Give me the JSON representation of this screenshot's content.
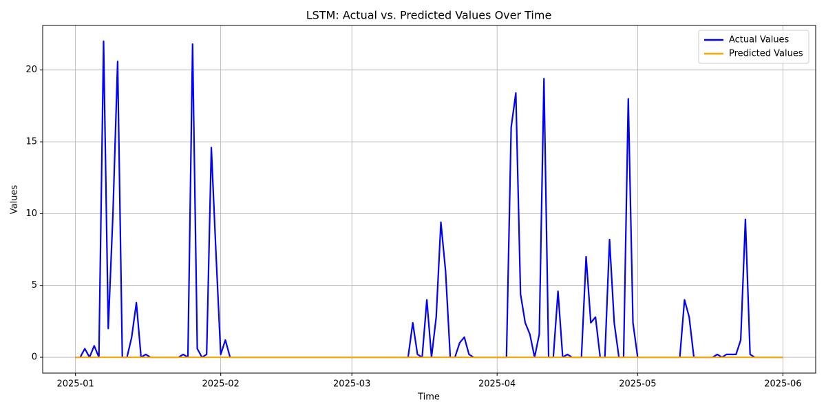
{
  "chart_data": {
    "type": "line",
    "title": "LSTM: Actual vs. Predicted Values Over Time",
    "x_label": "Time",
    "y_label": "Values",
    "x": [
      "2025-01-01",
      "2025-01-02",
      "2025-01-03",
      "2025-01-04",
      "2025-01-05",
      "2025-01-06",
      "2025-01-07",
      "2025-01-08",
      "2025-01-09",
      "2025-01-10",
      "2025-01-11",
      "2025-01-12",
      "2025-01-13",
      "2025-01-14",
      "2025-01-15",
      "2025-01-16",
      "2025-01-17",
      "2025-01-18",
      "2025-01-19",
      "2025-01-20",
      "2025-01-21",
      "2025-01-22",
      "2025-01-23",
      "2025-01-24",
      "2025-01-25",
      "2025-01-26",
      "2025-01-27",
      "2025-01-28",
      "2025-01-29",
      "2025-01-30",
      "2025-01-31",
      "2025-02-01",
      "2025-02-02",
      "2025-02-03",
      "2025-02-04",
      "2025-02-05",
      "2025-02-06",
      "2025-02-07",
      "2025-02-08",
      "2025-02-09",
      "2025-02-10",
      "2025-02-11",
      "2025-02-12",
      "2025-02-13",
      "2025-02-14",
      "2025-02-15",
      "2025-02-16",
      "2025-02-17",
      "2025-02-18",
      "2025-02-19",
      "2025-02-20",
      "2025-02-21",
      "2025-02-22",
      "2025-02-23",
      "2025-02-24",
      "2025-02-25",
      "2025-02-26",
      "2025-02-27",
      "2025-02-28",
      "2025-03-01",
      "2025-03-02",
      "2025-03-03",
      "2025-03-04",
      "2025-03-05",
      "2025-03-06",
      "2025-03-07",
      "2025-03-08",
      "2025-03-09",
      "2025-03-10",
      "2025-03-11",
      "2025-03-12",
      "2025-03-13",
      "2025-03-14",
      "2025-03-15",
      "2025-03-16",
      "2025-03-17",
      "2025-03-18",
      "2025-03-19",
      "2025-03-20",
      "2025-03-21",
      "2025-03-22",
      "2025-03-23",
      "2025-03-24",
      "2025-03-25",
      "2025-03-26",
      "2025-03-27",
      "2025-03-28",
      "2025-03-29",
      "2025-03-30",
      "2025-03-31",
      "2025-04-01",
      "2025-04-02",
      "2025-04-03",
      "2025-04-04",
      "2025-04-05",
      "2025-04-06",
      "2025-04-07",
      "2025-04-08",
      "2025-04-09",
      "2025-04-10",
      "2025-04-11",
      "2025-04-12",
      "2025-04-13",
      "2025-04-14",
      "2025-04-15",
      "2025-04-16",
      "2025-04-17",
      "2025-04-18",
      "2025-04-19",
      "2025-04-20",
      "2025-04-21",
      "2025-04-22",
      "2025-04-23",
      "2025-04-24",
      "2025-04-25",
      "2025-04-26",
      "2025-04-27",
      "2025-04-28",
      "2025-04-29",
      "2025-04-30",
      "2025-05-01",
      "2025-05-02",
      "2025-05-03",
      "2025-05-04",
      "2025-05-05",
      "2025-05-06",
      "2025-05-07",
      "2025-05-08",
      "2025-05-09",
      "2025-05-10",
      "2025-05-11",
      "2025-05-12",
      "2025-05-13",
      "2025-05-14",
      "2025-05-15",
      "2025-05-16",
      "2025-05-17",
      "2025-05-18",
      "2025-05-19",
      "2025-05-20",
      "2025-05-21",
      "2025-05-22",
      "2025-05-23",
      "2025-05-24",
      "2025-05-25",
      "2025-05-26",
      "2025-05-27",
      "2025-05-28",
      "2025-05-29",
      "2025-05-30",
      "2025-05-31",
      "2025-06-01"
    ],
    "series": [
      {
        "name": "Actual Values",
        "color": "#0000ff",
        "values": [
          0,
          0,
          0.6,
          0,
          0.8,
          0,
          22,
          2,
          10,
          20.6,
          0,
          0,
          1.4,
          3.8,
          0,
          0.2,
          0,
          0,
          0,
          0,
          0,
          0,
          0,
          0.2,
          0,
          21.8,
          0.6,
          0,
          0.2,
          14.6,
          7.2,
          0.2,
          1.2,
          0,
          0,
          0,
          0,
          0,
          0,
          0,
          0,
          0,
          0,
          0,
          0,
          0,
          0,
          0,
          0,
          0,
          0,
          0,
          0,
          0,
          0,
          0,
          0,
          0,
          0,
          0,
          0,
          0,
          0,
          0,
          0,
          0,
          0,
          0,
          0,
          0,
          0,
          0,
          2.4,
          0.2,
          0,
          4,
          0,
          2.8,
          9.4,
          6,
          0,
          0,
          1,
          1.4,
          0.2,
          0,
          0,
          0,
          0,
          0,
          0,
          0,
          0,
          16,
          18.4,
          4.4,
          2.4,
          1.6,
          0,
          1.6,
          19.4,
          0,
          0,
          4.6,
          0,
          0.2,
          0,
          0,
          0,
          7,
          2.4,
          2.8,
          0,
          0,
          8.2,
          2.4,
          0,
          0,
          18,
          2.4,
          0,
          0,
          0,
          0,
          0,
          0,
          0,
          0,
          0,
          0,
          4,
          2.8,
          0,
          0,
          0,
          0,
          0,
          0.2,
          0,
          0.2,
          0.2,
          0.2,
          1.2,
          9.6,
          0.2,
          0,
          0,
          0,
          0,
          0,
          0,
          0
        ]
      },
      {
        "name": "Predicted Values",
        "color": "#ffa500",
        "values": [
          0,
          0,
          0,
          0,
          0,
          0,
          0,
          0,
          0,
          0,
          0,
          0,
          0,
          0,
          0,
          0,
          0,
          0,
          0,
          0,
          0,
          0,
          0,
          0,
          0,
          0,
          0,
          0,
          0,
          0,
          0,
          0,
          0,
          0,
          0,
          0,
          0,
          0,
          0,
          0,
          0,
          0,
          0,
          0,
          0,
          0,
          0,
          0,
          0,
          0,
          0,
          0,
          0,
          0,
          0,
          0,
          0,
          0,
          0,
          0,
          0,
          0,
          0,
          0,
          0,
          0,
          0,
          0,
          0,
          0,
          0,
          0,
          0,
          0,
          0,
          0,
          0,
          0,
          0,
          0,
          0,
          0,
          0,
          0,
          0,
          0,
          0,
          0,
          0,
          0,
          0,
          0,
          0,
          0,
          0,
          0,
          0,
          0,
          0,
          0,
          0,
          0,
          0,
          0,
          0,
          0,
          0,
          0,
          0,
          0,
          0,
          0,
          0,
          0,
          0,
          0,
          0,
          0,
          0,
          0,
          0,
          0,
          0,
          0,
          0,
          0,
          0,
          0,
          0,
          0,
          0,
          0,
          0,
          0,
          0,
          0,
          0,
          0,
          0,
          0,
          0,
          0,
          0,
          0,
          0,
          0,
          0,
          0,
          0,
          0,
          0,
          0
        ]
      }
    ],
    "xlim": [
      "2024-12-25",
      "2025-06-08"
    ],
    "xticks": [
      {
        "value": "2025-01-01",
        "label": "2025-01"
      },
      {
        "value": "2025-02-01",
        "label": "2025-02"
      },
      {
        "value": "2025-03-01",
        "label": "2025-03"
      },
      {
        "value": "2025-04-01",
        "label": "2025-04"
      },
      {
        "value": "2025-05-01",
        "label": "2025-05"
      },
      {
        "value": "2025-06-01",
        "label": "2025-06"
      }
    ],
    "ylim": [
      -1.1,
      23.1
    ],
    "yticks": [
      0,
      5,
      10,
      15,
      20
    ],
    "grid": true,
    "legend": "upper right"
  }
}
